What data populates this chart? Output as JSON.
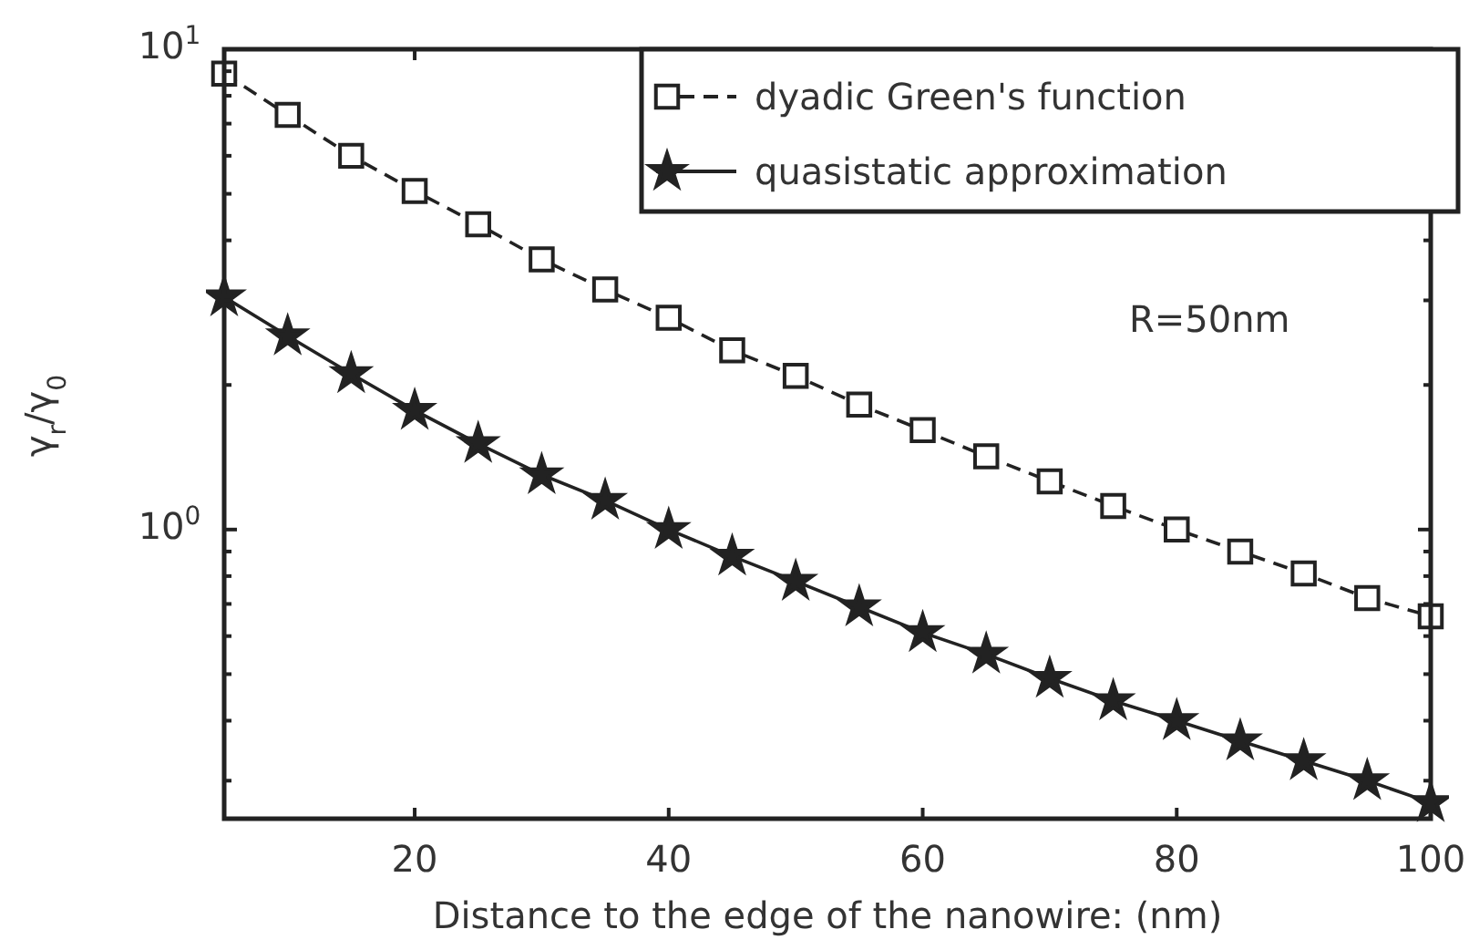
{
  "chart_data": {
    "type": "line",
    "xlabel": "Distance to the edge of the nanowire: (nm)",
    "ylabel": "γ$_{r}$/γ$_{0}$",
    "x": [
      5,
      10,
      15,
      20,
      25,
      30,
      35,
      40,
      45,
      50,
      55,
      60,
      65,
      70,
      75,
      80,
      85,
      90,
      95,
      100
    ],
    "series": [
      {
        "name": "dyadic Green's function",
        "color": "#222222",
        "marker": "square",
        "line_style": "dashed",
        "values": [
          8.9,
          7.3,
          6.0,
          5.07,
          4.32,
          3.65,
          3.16,
          2.76,
          2.36,
          2.09,
          1.82,
          1.61,
          1.42,
          1.26,
          1.12,
          1.0,
          0.9,
          0.81,
          0.72,
          0.66
        ]
      },
      {
        "name": "quasistatic approximation",
        "color": "#222222",
        "marker": "star",
        "line_style": "solid",
        "values": [
          3.05,
          2.53,
          2.11,
          1.77,
          1.51,
          1.3,
          1.15,
          1.0,
          0.88,
          0.78,
          0.69,
          0.61,
          0.55,
          0.49,
          0.44,
          0.4,
          0.363,
          0.33,
          0.3,
          0.27
        ]
      }
    ],
    "xlim": [
      5,
      100
    ],
    "xticks": [
      20,
      40,
      60,
      80,
      100
    ],
    "ylim": [
      0.25,
      10
    ],
    "log": true,
    "yticks": [
      {
        "value": 0.3,
        "label": null
      },
      {
        "value": 0.4,
        "label": null
      },
      {
        "value": 0.5,
        "label": null
      },
      {
        "value": 0.6,
        "label": null
      },
      {
        "value": 0.7,
        "label": null
      },
      {
        "value": 0.8,
        "label": null
      },
      {
        "value": 0.9,
        "label": null
      },
      {
        "value": 1,
        "label": "10$^{0}$"
      },
      {
        "value": 2,
        "label": null
      },
      {
        "value": 3,
        "label": null
      },
      {
        "value": 4,
        "label": null
      },
      {
        "value": 5,
        "label": null
      },
      {
        "value": 6,
        "label": null
      },
      {
        "value": 7,
        "label": null
      },
      {
        "value": 8,
        "label": null
      },
      {
        "value": 9,
        "label": null
      },
      {
        "value": 10,
        "label": "10$^{1}$"
      }
    ],
    "annotations": [
      "R=50nm"
    ],
    "legend": "top right",
    "grid": false
  }
}
